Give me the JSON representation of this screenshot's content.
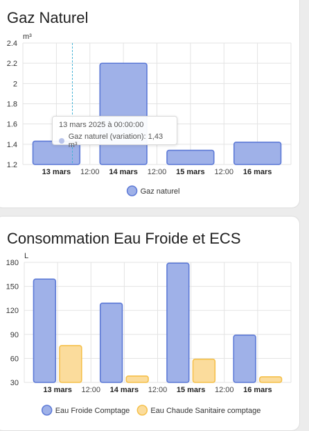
{
  "cards": [
    {
      "title": "Gaz Naturel",
      "unit": "m³",
      "tooltip": {
        "title": "13 mars 2025 à 00:00:00",
        "text": "Gaz naturel (variation): 1,43 m³"
      }
    },
    {
      "title": "Consommation Eau Froide et ECS",
      "unit": "L"
    }
  ],
  "chart_data": [
    {
      "type": "bar",
      "title": "Gaz Naturel",
      "ylabel": "m³",
      "ylim": [
        1.2,
        2.4
      ],
      "yticks": [
        "2.4",
        "2.2",
        "2",
        "1.8",
        "1.6",
        "1.4",
        "1.2"
      ],
      "ytick_values": [
        2.4,
        2.2,
        2.0,
        1.8,
        1.6,
        1.4,
        1.2
      ],
      "xticks": [
        "13 mars",
        "12:00",
        "14 mars",
        "12:00",
        "15 mars",
        "12:00",
        "16 mars"
      ],
      "categories": [
        "13 mars",
        "14 mars",
        "15 mars",
        "16 mars"
      ],
      "series": [
        {
          "name": "Gaz naturel",
          "values": [
            1.43,
            2.2,
            1.34,
            1.42
          ],
          "color": "#9fb1e8",
          "stroke": "#5c79d6"
        }
      ],
      "legend": "bottom",
      "grid": true
    },
    {
      "type": "bar",
      "title": "Consommation Eau Froide et ECS",
      "ylabel": "L",
      "ylim": [
        30,
        180
      ],
      "yticks": [
        "180",
        "150",
        "120",
        "90",
        "60",
        "30"
      ],
      "ytick_values": [
        180,
        150,
        120,
        90,
        60,
        30
      ],
      "xticks": [
        "13 mars",
        "12:00",
        "14 mars",
        "12:00",
        "15 mars",
        "12:00",
        "16 mars"
      ],
      "categories": [
        "13 mars",
        "14 mars",
        "15 mars",
        "16 mars"
      ],
      "series": [
        {
          "name": "Eau Froide Comptage",
          "values": [
            159,
            129,
            179,
            89
          ],
          "color": "#9fb1e8",
          "stroke": "#5c79d6"
        },
        {
          "name": "Eau Chaude Sanitaire comptage",
          "values": [
            76,
            38,
            59,
            37
          ],
          "color": "#fbdc9c",
          "stroke": "#f5c04a"
        }
      ],
      "legend": "bottom",
      "grid": true
    }
  ]
}
